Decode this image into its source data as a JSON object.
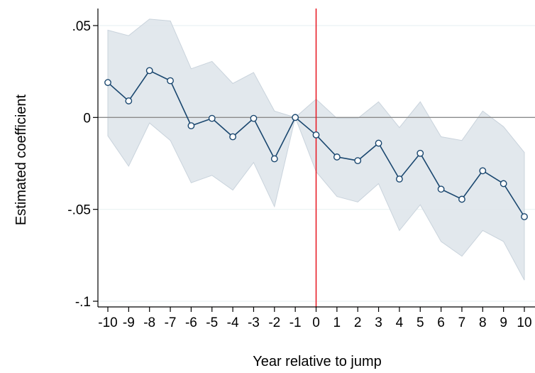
{
  "chart_data": {
    "type": "line",
    "title": "",
    "xlabel": "Year relative to jump",
    "ylabel": "Estimated coefficient",
    "x": [
      -10,
      -9,
      -8,
      -7,
      -6,
      -5,
      -4,
      -3,
      -2,
      -1,
      0,
      1,
      2,
      3,
      4,
      5,
      6,
      7,
      8,
      9,
      10
    ],
    "x_tick_labels": [
      "-10",
      "-9",
      "-8",
      "-7",
      "-6",
      "-5",
      "-4",
      "-3",
      "-2",
      "-1",
      "0",
      "1",
      "2",
      "3",
      "4",
      "5",
      "6",
      "7",
      "8",
      "9",
      "10"
    ],
    "y_ticks": [
      0.05,
      0,
      -0.05,
      -0.1
    ],
    "y_tick_labels": [
      ".05",
      "0",
      "-.05",
      "-.1"
    ],
    "ylim": [
      -0.1,
      0.05
    ],
    "xlim": [
      -10,
      10
    ],
    "grid": true,
    "reference_lines": {
      "horizontal_y": 0,
      "vertical_x": 0
    },
    "series": [
      {
        "values": [
          0.019,
          0.009,
          0.0255,
          0.02,
          -0.0045,
          -0.0005,
          -0.0105,
          -0.0005,
          -0.0225,
          0.0,
          -0.0095,
          -0.0215,
          -0.0235,
          -0.014,
          -0.0335,
          -0.0195,
          -0.039,
          -0.0445,
          -0.029,
          -0.036,
          -0.054
        ],
        "ci_upper": [
          0.0475,
          0.0445,
          0.0535,
          0.0525,
          0.0265,
          0.0305,
          0.0185,
          0.0245,
          0.0035,
          0.0,
          0.01,
          -0.0005,
          -0.0005,
          0.0085,
          -0.0055,
          0.0085,
          -0.0105,
          -0.0125,
          0.0035,
          -0.005,
          -0.019
        ],
        "ci_lower": [
          -0.01,
          -0.0265,
          -0.003,
          -0.0125,
          -0.0355,
          -0.0315,
          -0.0395,
          -0.0245,
          -0.0485,
          0.0,
          -0.0295,
          -0.043,
          -0.046,
          -0.036,
          -0.0615,
          -0.0475,
          -0.0675,
          -0.0755,
          -0.0615,
          -0.0675,
          -0.0885
        ]
      }
    ]
  },
  "colors": {
    "line": "#1a476f",
    "marker_fill": "#ffffff",
    "ci_band": "#dde4ea",
    "ci_edge": "#c9d3dc",
    "zero_line": "#8c8c8c",
    "vertical_line": "#e8141f",
    "grid": "#eaf2f3",
    "axis": "#000000"
  }
}
